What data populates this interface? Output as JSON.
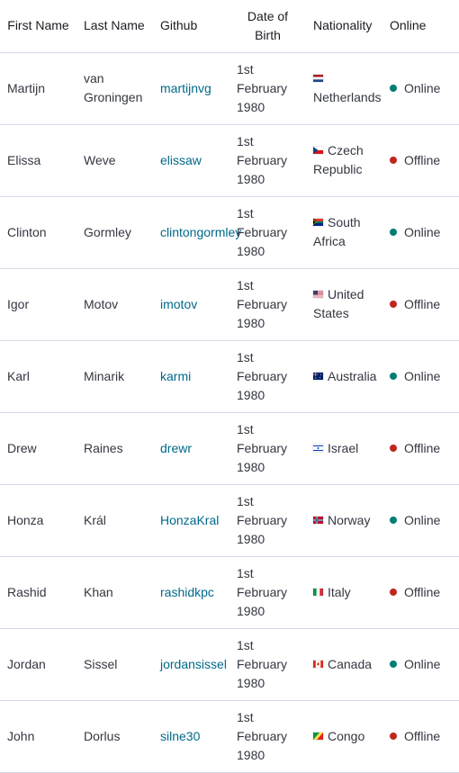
{
  "table": {
    "headers": [
      "First Name",
      "Last Name",
      "Github",
      "Date of Birth",
      "Nationality",
      "Online"
    ],
    "rows": [
      {
        "first": "Martijn",
        "last": "van Groningen",
        "github": "martijnvg",
        "dob": "1st February 1980",
        "nationality": "Netherlands",
        "flag": "netherlands-flag-icon",
        "online": "Online"
      },
      {
        "first": "Elissa",
        "last": "Weve",
        "github": "elissaw",
        "dob": "1st February 1980",
        "nationality": "Czech Republic",
        "flag": "czech-flag-icon",
        "online": "Offline"
      },
      {
        "first": "Clinton",
        "last": "Gormley",
        "github": "clintongormley",
        "dob": "1st February 1980",
        "nationality": "South Africa",
        "flag": "south-africa-flag-icon",
        "online": "Online"
      },
      {
        "first": "Igor",
        "last": "Motov",
        "github": "imotov",
        "dob": "1st February 1980",
        "nationality": "United States",
        "flag": "usa-flag-icon",
        "online": "Offline"
      },
      {
        "first": "Karl",
        "last": "Minarik",
        "github": "karmi",
        "dob": "1st February 1980",
        "nationality": "Australia",
        "flag": "australia-flag-icon",
        "online": "Online"
      },
      {
        "first": "Drew",
        "last": "Raines",
        "github": "drewr",
        "dob": "1st February 1980",
        "nationality": "Israel",
        "flag": "israel-flag-icon",
        "online": "Offline"
      },
      {
        "first": "Honza",
        "last": "Král",
        "github": "HonzaKral",
        "dob": "1st February 1980",
        "nationality": "Norway",
        "flag": "norway-flag-icon",
        "online": "Online"
      },
      {
        "first": "Rashid",
        "last": "Khan",
        "github": "rashidkpc",
        "dob": "1st February 1980",
        "nationality": "Italy",
        "flag": "italy-flag-icon",
        "online": "Offline"
      },
      {
        "first": "Jordan",
        "last": "Sissel",
        "github": "jordansissel",
        "dob": "1st February 1980",
        "nationality": "Canada",
        "flag": "canada-flag-icon",
        "online": "Online"
      },
      {
        "first": "John",
        "last": "Dorlus",
        "github": "silne30",
        "dob": "1st February 1980",
        "nationality": "Congo",
        "flag": "congo-flag-icon",
        "online": "Offline"
      }
    ]
  },
  "colors": {
    "online": "#017d73",
    "offline": "#bd271e",
    "link": "#00698a",
    "border": "#d3dae6"
  }
}
